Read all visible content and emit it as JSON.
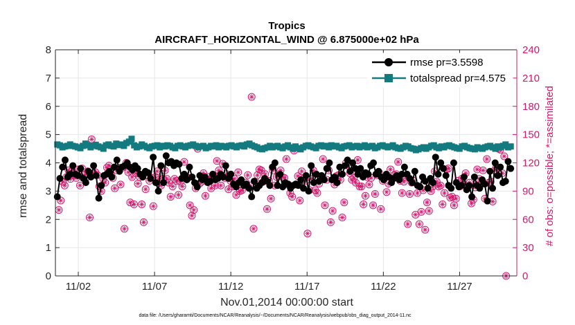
{
  "chart_data": {
    "type": "line",
    "title_line1": "Tropics",
    "title_line2": "AIRCRAFT_HORIZONTAL_WIND @ 6.875000e+02 hPa",
    "xlabel": "Nov.01,2014 00:00:00 start",
    "ylabel_left": "rmse and totalspread",
    "ylabel_right": "# of obs: o=possible; *=assimilated",
    "ylim_left": [
      0,
      8
    ],
    "ylim_right": [
      0,
      240
    ],
    "yticks_left": [
      0,
      1,
      2,
      3,
      4,
      5,
      6,
      7,
      8
    ],
    "yticks_right": [
      0,
      30,
      60,
      90,
      120,
      150,
      180,
      210,
      240
    ],
    "x_range_days": [
      0.5,
      30.75
    ],
    "x_ticks": [
      {
        "day": 2,
        "label": "11/02"
      },
      {
        "day": 7,
        "label": "11/07"
      },
      {
        "day": 12,
        "label": "11/12"
      },
      {
        "day": 17,
        "label": "11/17"
      },
      {
        "day": 22,
        "label": "11/22"
      },
      {
        "day": 27,
        "label": "11/27"
      }
    ],
    "x_start_day": 0.625,
    "x_step_days": 0.25,
    "colors": {
      "rmse": "#000000",
      "totalspread": "#137b80",
      "obs": "#d6156b",
      "axis": "#262626"
    },
    "series": [
      {
        "name": "rmse",
        "legend_label": "rmse pr=3.5598",
        "values": [
          2.8,
          3.45,
          3.85,
          4.1,
          3.5,
          3.6,
          3.9,
          3.6,
          3.55,
          3.8,
          3.45,
          3.3,
          3.7,
          3.5,
          3.9,
          3.55,
          2.75,
          3.2,
          3.55,
          3.6,
          3.7,
          3.5,
          3.85,
          4.1,
          3.7,
          3.85,
          3.9,
          4.0,
          3.85,
          3.75,
          3.9,
          3.8,
          3.6,
          3.5,
          3.7,
          3.65,
          3.45,
          4.2,
          3.3,
          3.0,
          3.9,
          3.3,
          4.25,
          4.0,
          4.05,
          3.9,
          4.0,
          3.95,
          3.45,
          3.6,
          3.4,
          3.85,
          3.5,
          3.3,
          3.15,
          3.55,
          3.4,
          3.5,
          3.3,
          3.35,
          3.6,
          3.4,
          3.45,
          3.6,
          3.5,
          3.9,
          3.45,
          3.6,
          3.25,
          3.15,
          3.3,
          3.4,
          3.2,
          3.25,
          3.1,
          2.8,
          3.35,
          3.1,
          3.2,
          3.3,
          3.45,
          3.35,
          3.2,
          3.85,
          4.0,
          3.2,
          3.6,
          3.15,
          3.3,
          3.25,
          3.1,
          3.2,
          3.25,
          3.2,
          3.4,
          3.1,
          3.55,
          3.0,
          3.9,
          3.3,
          3.6,
          3.35,
          3.55,
          3.4,
          3.8,
          4.0,
          3.4,
          3.5,
          3.3,
          3.85,
          3.6,
          3.9,
          4.1,
          3.7,
          4.0,
          3.8,
          3.6,
          3.8,
          3.5,
          3.65,
          3.6,
          3.9,
          4.0,
          3.6,
          3.7,
          3.5,
          3.4,
          3.6,
          3.5,
          3.3,
          3.45,
          3.55,
          3.4,
          3.6,
          3.85,
          3.6,
          3.45,
          3.3,
          3.7,
          3.2,
          3.15,
          3.5,
          3.35,
          3.1,
          3.45,
          3.3,
          4.2,
          3.6,
          4.0,
          3.8,
          3.55,
          3.2,
          3.1,
          4.0,
          3.3,
          3.15,
          3.2,
          3.5,
          3.05,
          3.2,
          2.8,
          3.5,
          3.2,
          3.1,
          3.4,
          3.25,
          2.65,
          3.7,
          3.1,
          4.0,
          3.55,
          3.85,
          3.3,
          3.35,
          4.05,
          3.8
        ]
      },
      {
        "name": "totalspread",
        "legend_label": "totalspread pr=4.575",
        "values": [
          4.65,
          4.62,
          4.55,
          4.58,
          4.6,
          4.65,
          4.6,
          4.58,
          4.55,
          4.52,
          4.6,
          4.68,
          4.62,
          4.55,
          4.6,
          4.64,
          4.58,
          4.55,
          4.5,
          4.62,
          4.65,
          4.6,
          4.58,
          4.68,
          4.63,
          4.65,
          4.6,
          4.7,
          4.75,
          4.85,
          4.62,
          4.55,
          4.58,
          4.65,
          4.6,
          4.55,
          4.52,
          4.58,
          4.6,
          4.62,
          4.55,
          4.6,
          4.58,
          4.62,
          4.6,
          4.55,
          4.52,
          4.6,
          4.62,
          4.58,
          4.55,
          4.6,
          4.62,
          4.65,
          4.6,
          4.55,
          4.58,
          4.6,
          4.52,
          4.55,
          4.6,
          4.58,
          4.62,
          4.55,
          4.6,
          4.58,
          4.55,
          4.6,
          4.62,
          4.58,
          4.55,
          4.6,
          4.62,
          4.58,
          4.65,
          4.68,
          4.62,
          4.58,
          4.55,
          4.5,
          4.48,
          4.52,
          4.55,
          4.6,
          4.55,
          4.58,
          4.6,
          4.55,
          4.52,
          4.58,
          4.62,
          4.55,
          4.5,
          4.58,
          4.52,
          4.48,
          4.55,
          4.6,
          4.62,
          4.58,
          4.55,
          4.52,
          4.6,
          4.62,
          4.58,
          4.6,
          4.55,
          4.62,
          4.58,
          4.6,
          4.55,
          4.52,
          4.58,
          4.6,
          4.62,
          4.55,
          4.58,
          4.6,
          4.55,
          4.58,
          4.62,
          4.55,
          4.58,
          4.6,
          4.52,
          4.55,
          4.6,
          4.62,
          4.58,
          4.55,
          4.58,
          4.62,
          4.55,
          4.52,
          4.5,
          4.55,
          4.6,
          4.58,
          4.52,
          4.5,
          4.45,
          4.48,
          4.52,
          4.55,
          4.5,
          4.55,
          4.6,
          4.62,
          4.55,
          4.52,
          4.58,
          4.55,
          4.6,
          4.62,
          4.58,
          4.55,
          4.52,
          4.5,
          4.58,
          4.6,
          4.55,
          4.52,
          4.5,
          4.48,
          4.55,
          4.52,
          4.5,
          4.55,
          4.58,
          4.6,
          4.55,
          4.5,
          4.58,
          4.55,
          4.6,
          4.65,
          4.55,
          4.58
        ]
      },
      {
        "name": "obs_possible_assimilated",
        "axis": "right",
        "values": [
          70,
          80,
          100,
          96,
          105,
          112,
          103,
          112,
          107,
          104,
          113,
          96,
          114,
          107,
          104,
          111,
          62,
          145,
          109,
          110,
          107,
          95,
          90,
          103,
          99,
          115,
          117,
          108,
          104,
          93,
          112,
          115,
          97,
          115,
          50,
          120,
          110,
          78,
          105,
          76,
          109,
          98,
          105,
          76,
          57,
          92,
          107,
          101,
          104,
          74,
          105,
          111,
          102,
          96,
          103,
          112,
          103,
          99,
          84,
          95,
          103,
          101,
          86,
          100,
          95,
          121,
          104,
          104,
          75,
          64,
          70,
          93,
          135,
          98,
          100,
          109,
          85,
          101,
          105,
          93,
          107,
          96,
          122,
          112,
          96,
          119,
          104,
          108,
          92,
          101,
          95,
          103,
          86,
          110,
          90,
          91,
          97,
          99,
          107,
          96,
          190,
          50,
          100,
          107,
          113,
          112,
          100,
          108,
          71,
          101,
          82,
          112,
          96,
          105,
          106,
          112,
          105,
          104,
          124,
          97,
          88,
          84,
          133,
          97,
          106,
          80,
          111,
          103,
          101,
          45,
          91,
          103,
          112,
          91,
          88,
          98,
          103,
          124,
          75,
          102,
          112,
          57,
          69,
          97,
          106,
          107,
          102,
          62,
          78,
          120,
          117,
          109,
          102,
          104,
          99,
          123,
          95,
          95,
          76,
          85,
          105,
          97,
          104,
          75,
          87,
          107,
          110,
          71,
          101,
          105,
          89,
          98,
          113,
          103,
          107,
          108,
          121,
          101,
          88,
          100,
          105,
          55,
          87,
          99,
          101,
          65,
          88,
          55,
          68,
          91,
          49,
          78,
          69,
          90,
          95,
          111,
          100,
          95,
          96,
          76,
          88,
          113,
          114,
          83,
          84,
          75,
          82,
          101,
          95,
          103,
          98,
          109,
          94,
          99,
          77,
          81,
          94,
          113,
          103,
          98,
          112,
          82,
          124,
          99,
          100,
          79,
          112,
          116,
          135,
          134,
          109,
          127,
          0
        ]
      }
    ],
    "footnote": "data file: /Users/gharamti/Documents/NCAR/Reanalysis/~/Documents/NCAR/Reanalysis/webpub/obs_diag_output_2014-11.nc"
  }
}
